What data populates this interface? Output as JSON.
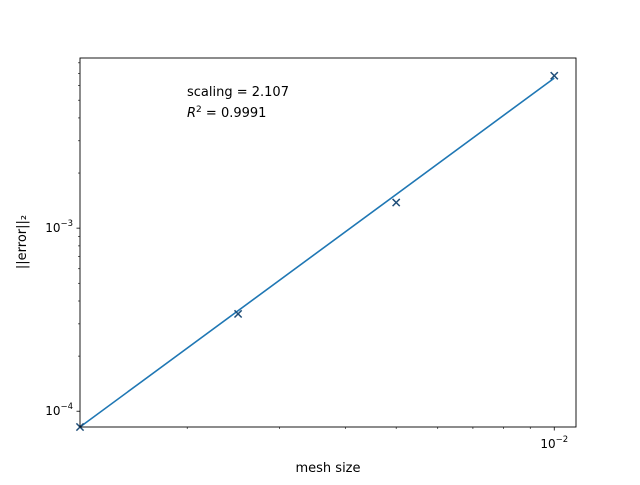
{
  "chart_data": {
    "type": "scatter",
    "title": "",
    "xlabel": "mesh size",
    "ylabel": "||error||₂",
    "xscale": "log",
    "yscale": "log",
    "xlim": [
      0.00125,
      0.011
    ],
    "ylim": [
      8.2e-05,
      0.0085
    ],
    "grid": false,
    "legend": "none",
    "x_major_ticks": [
      {
        "value": 0.01,
        "base": "10",
        "exp": "−2"
      }
    ],
    "y_major_ticks": [
      {
        "value": 0.0001,
        "base": "10",
        "exp": "−4"
      },
      {
        "value": 0.001,
        "base": "10",
        "exp": "−3"
      }
    ],
    "x_minor_ticks": [
      0.002,
      0.003,
      0.004,
      0.005,
      0.006,
      0.007,
      0.008,
      0.009
    ],
    "y_minor_ticks": [
      0.0002,
      0.0003,
      0.0004,
      0.0005,
      0.0006,
      0.0007,
      0.0008,
      0.0009,
      0.002,
      0.003,
      0.004,
      0.005,
      0.006,
      0.007,
      0.008
    ],
    "series": [
      {
        "kind": "points",
        "marker": "x",
        "color": "#1f4e79",
        "x": [
          0.00125,
          0.0025,
          0.005,
          0.01
        ],
        "y": [
          8.2e-05,
          0.00034,
          0.00138,
          0.0068
        ]
      },
      {
        "kind": "fit-line",
        "color": "#1f77b4",
        "x": [
          0.00125,
          0.01
        ],
        "y": [
          8.2e-05,
          0.0066
        ]
      }
    ],
    "annotations": {
      "scaling": "scaling = 2.107",
      "r2_prefix": "R",
      "r2_sup": "2",
      "r2_value": " = 0.9991"
    }
  }
}
